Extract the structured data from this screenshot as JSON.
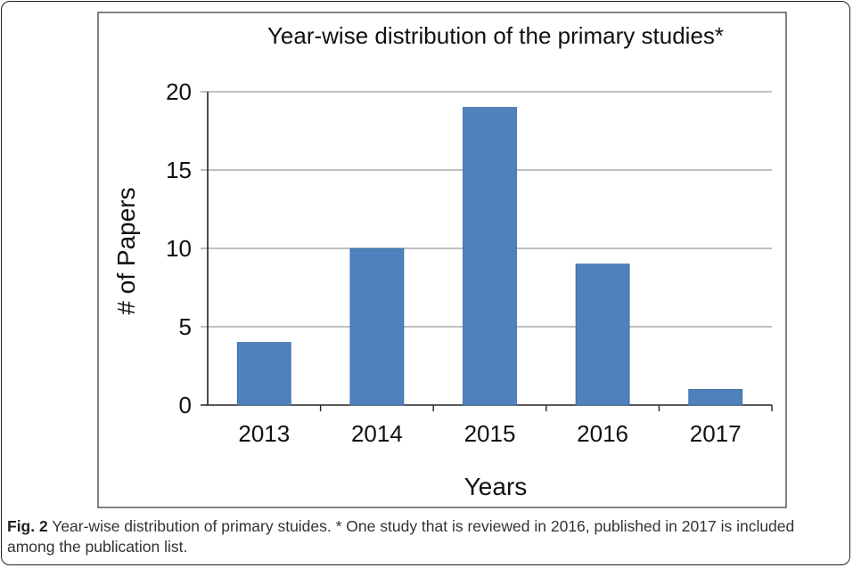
{
  "chart_data": {
    "type": "bar",
    "title": "Year-wise distribution of the primary studies*",
    "xlabel": "Years",
    "ylabel": "# of Papers",
    "categories": [
      "2013",
      "2014",
      "2015",
      "2016",
      "2017"
    ],
    "values": [
      4,
      10,
      19,
      9,
      1
    ],
    "ylim": [
      0,
      20
    ],
    "yticks": [
      0,
      5,
      10,
      15,
      20
    ],
    "grid": true,
    "legend": "none",
    "bar_color": "#4F81BD"
  },
  "caption": {
    "label": "Fig. 2",
    "text": "Year-wise distribution of primary stuides. * One study that is reviewed in 2016, published in 2017 is included among the publication list."
  }
}
